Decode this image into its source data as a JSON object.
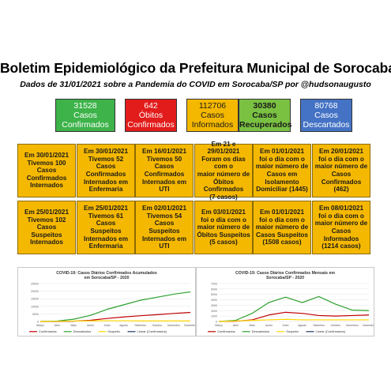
{
  "header": {
    "title": "Boletim Epidemiológico da Prefeitura Municipal de Sorocaba",
    "subtitle": "Dados de 31/01/2021 sobre a Pandemia do COVID em Sorocaba/SP por @hudsonaugusto"
  },
  "stats": [
    {
      "value": "31528",
      "label1": "Casos",
      "label2": "Confirmados",
      "color": "#3db34a"
    },
    {
      "value": "642",
      "label1": "Óbitos",
      "label2": "Confirmados",
      "color": "#e21b1b"
    },
    {
      "value": "112706",
      "label1": "Casos",
      "label2": "Informados",
      "color": "#f5b800"
    },
    {
      "value": "30380",
      "label1": "Casos",
      "label2": "Recuperados",
      "color": "#7ac142"
    },
    {
      "value": "80768",
      "label1": "Casos",
      "label2": "Descartados",
      "color": "#4472c4"
    }
  ],
  "cards": [
    [
      "Em 30/01/2021",
      "Tivemos 100 Casos",
      "Confirmados",
      "Internados"
    ],
    [
      "Em 30/01/2021",
      "Tivemos 52 Casos",
      "Confirmados",
      "Internados em",
      "Enfermaria"
    ],
    [
      "Em 16/01/2021",
      "Tivemos 50 Casos",
      "Confirmados",
      "Internados em UTI"
    ],
    [
      "Em 21 e 29/01/2021",
      "Foram os dias com o",
      "maior número de",
      "Óbitos Confirmados",
      "(7 casos)"
    ],
    [
      "Em 01/01/2021",
      "foi o dia com o",
      "maior número de",
      "Casos em",
      "Isolamento",
      "Domiciliar (1445)"
    ],
    [
      "Em 20/01/2021",
      "foi o dia com o",
      "maior número de",
      "Casos Confirmados",
      "(462)"
    ],
    [
      "Em 25/01/2021",
      "Tivemos 102 Casos",
      "Suspeitos",
      "Internados"
    ],
    [
      "Em 25/01/2021",
      "Tivemos 61 Casos",
      "Suspeitos",
      "Internados em",
      "Enfermaria"
    ],
    [
      "Em 02/01/2021",
      "Tivemos 54  Casos",
      "Suspeitos",
      "Internados em UTI"
    ],
    [
      "Em 03/01/2021",
      "foi o dia com o",
      "maior número de",
      "Óbitos Suspeitos",
      "(5 casos)"
    ],
    [
      "Em 01/01/2021",
      "foi o dia com o",
      "maior número de",
      "Casos Suspeitos",
      "(1508 casos)"
    ],
    [
      "Em 08/01/2021",
      "foi o dia com o",
      "maior número de",
      "Casos Informados",
      "(1214 casos)"
    ]
  ],
  "chart_data": [
    {
      "type": "line",
      "title": "COVID-19: Casos Diários Confirmados Acumulados em Sorocaba/SP - 2020",
      "categories": [
        "Março",
        "Abril",
        "Maio",
        "Junho",
        "Julho",
        "Agosto",
        "Setembro",
        "Outubro",
        "Novembro",
        "Dezembro"
      ],
      "ylim": [
        0,
        25000
      ],
      "yticks": [
        "25000",
        "20000",
        "15000",
        "10000",
        "5000",
        "0"
      ],
      "series": [
        {
          "name": "Confirmados",
          "color": "#c00000",
          "values": [
            0,
            0,
            200,
            800,
            2000,
            3000,
            3800,
            4500,
            5300,
            6000
          ]
        },
        {
          "name": "Descartados",
          "color": "#2ca02c",
          "values": [
            0,
            300,
            1500,
            4000,
            8000,
            11000,
            14000,
            16000,
            18000,
            19500
          ]
        },
        {
          "name": "Suspeito",
          "color": "#ffd700",
          "values": [
            0,
            100,
            300,
            400,
            500,
            500,
            400,
            400,
            400,
            400
          ]
        },
        {
          "name": "Linear (Confirmados)",
          "color": "#1f3864",
          "values": [
            null,
            null,
            null,
            null,
            null,
            null,
            null,
            null,
            null,
            null
          ]
        }
      ]
    },
    {
      "type": "line",
      "title": "COVID-19: Casos Diários Confirmados Mensais em Sorocaba/SP - 2020",
      "categories": [
        "Março",
        "Abril",
        "Maio",
        "Junho",
        "Julho",
        "Agosto",
        "Setembro",
        "Outubro",
        "Novembro",
        "Dezembro"
      ],
      "ylim": [
        0,
        7000
      ],
      "yticks": [
        "7000",
        "6000",
        "5000",
        "4000",
        "3000",
        "2000",
        "1000",
        "0"
      ],
      "series": [
        {
          "name": "Confirmados",
          "color": "#c00000",
          "values": [
            0,
            50,
            300,
            1200,
            1700,
            1500,
            1100,
            1000,
            1100,
            1200
          ]
        },
        {
          "name": "Descartados",
          "color": "#2ca02c",
          "values": [
            0,
            200,
            1500,
            3500,
            4500,
            3500,
            4600,
            3200,
            2100,
            2000
          ]
        },
        {
          "name": "Suspeito",
          "color": "#ffd700",
          "values": [
            0,
            100,
            200,
            300,
            400,
            300,
            300,
            300,
            300,
            300
          ]
        },
        {
          "name": "Linear (Confirmados)",
          "color": "#1f3864",
          "values": [
            null,
            null,
            null,
            null,
            null,
            null,
            null,
            null,
            null,
            null
          ]
        }
      ]
    }
  ]
}
